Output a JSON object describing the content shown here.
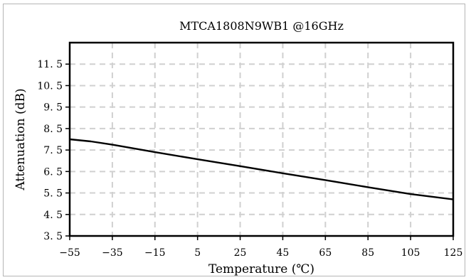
{
  "chart_data": {
    "type": "line",
    "title": "MTCA1808N9WB1 @16GHz",
    "xlabel": "Temperature (℃)",
    "ylabel": "Attenuation (dB)",
    "xlim": [
      -55,
      125
    ],
    "ylim": [
      3.5,
      12.5
    ],
    "x_ticks": [
      -55,
      -35,
      -15,
      5,
      25,
      45,
      65,
      85,
      105,
      125
    ],
    "y_ticks": [
      3.5,
      4.5,
      5.5,
      6.5,
      7.5,
      8.5,
      9.5,
      10.5,
      11.5
    ],
    "grid": true,
    "series": [
      {
        "x": [
          -55,
          -45,
          -35,
          -15,
          5,
          25,
          45,
          65,
          85,
          105,
          125
        ],
        "y": [
          8.0,
          7.9,
          7.75,
          7.4,
          7.07,
          6.75,
          6.42,
          6.1,
          5.77,
          5.45,
          5.2
        ]
      }
    ],
    "colors": {
      "line": "#000000",
      "grid": "#d0d0d0",
      "axes": "#000000"
    }
  }
}
